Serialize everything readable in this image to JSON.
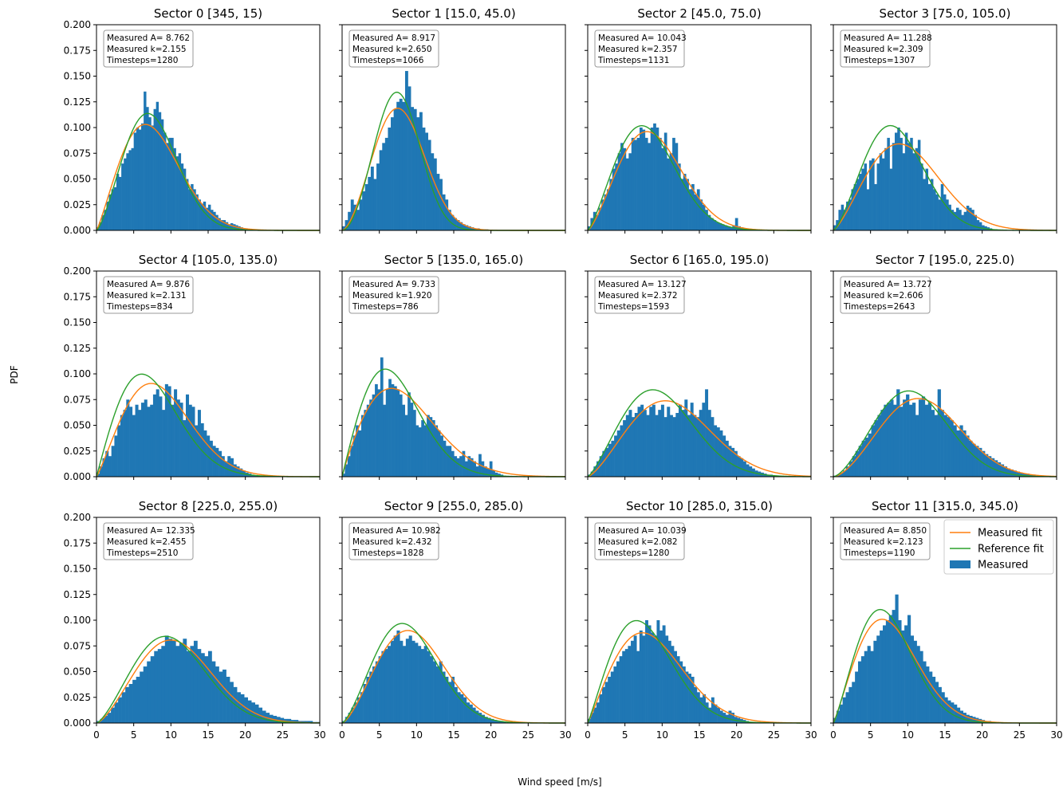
{
  "figure": {
    "xlabel": "Wind speed [m/s]",
    "ylabel": "PDF",
    "legend": {
      "placement": "upper-right of Sector 11",
      "entries": [
        {
          "label": "Measured fit",
          "color": "#ff7f0e",
          "kind": "line"
        },
        {
          "label": "Reference fit",
          "color": "#2ca02c",
          "kind": "line"
        },
        {
          "label": "Measured",
          "color": "#1f77b4",
          "kind": "patch"
        }
      ]
    }
  },
  "chart_data": {
    "type": "bar",
    "layout": "3x4 grid, shared axes",
    "xlim": [
      0,
      30
    ],
    "ylim": [
      0,
      0.2
    ],
    "x_ticks": [
      0,
      5,
      10,
      15,
      20,
      25,
      30
    ],
    "y_ticks": [
      "0.000",
      "0.025",
      "0.050",
      "0.075",
      "0.100",
      "0.125",
      "0.150",
      "0.175",
      "0.200"
    ],
    "grid": false,
    "colors": {
      "measured": "#1f77b4",
      "measured_fit": "#ff7f0e",
      "reference_fit": "#2ca02c"
    },
    "panels": [
      {
        "title": "Sector 0 [345, 15)",
        "A_text": "Measured A= 8.762",
        "k_text": "Measured k=2.155",
        "ts_text": "Timesteps=1280",
        "A": 8.762,
        "k": 2.155,
        "refA": 8.6,
        "refK": 2.4,
        "maxx": 22,
        "hist": [
          0.003,
          0.008,
          0.015,
          0.02,
          0.028,
          0.035,
          0.04,
          0.042,
          0.055,
          0.052,
          0.065,
          0.07,
          0.075,
          0.078,
          0.08,
          0.095,
          0.1,
          0.098,
          0.104,
          0.135,
          0.12,
          0.11,
          0.102,
          0.118,
          0.125,
          0.115,
          0.108,
          0.095,
          0.085,
          0.09,
          0.09,
          0.08,
          0.072,
          0.075,
          0.065,
          0.06,
          0.05,
          0.04,
          0.045,
          0.04,
          0.035,
          0.03,
          0.026,
          0.028,
          0.022,
          0.025,
          0.02,
          0.018,
          0.015,
          0.012,
          0.01,
          0.01,
          0.008,
          0.006,
          0.007,
          0.006,
          0.005,
          0.004,
          0.003,
          0.002,
          0.002,
          0.001,
          0.001,
          0.001,
          0.001,
          0.0
        ]
      },
      {
        "title": "Sector 1 [15.0, 45.0)",
        "A_text": "Measured A= 8.917",
        "k_text": "Measured k=2.650",
        "ts_text": "Timesteps=1066",
        "A": 8.917,
        "k": 2.65,
        "refA": 8.5,
        "refK": 2.9,
        "maxx": 20,
        "hist": [
          0.004,
          0.01,
          0.018,
          0.03,
          0.025,
          0.02,
          0.03,
          0.038,
          0.045,
          0.052,
          0.062,
          0.05,
          0.065,
          0.078,
          0.085,
          0.09,
          0.1,
          0.11,
          0.118,
          0.125,
          0.128,
          0.125,
          0.155,
          0.14,
          0.12,
          0.118,
          0.11,
          0.115,
          0.1,
          0.095,
          0.088,
          0.075,
          0.07,
          0.055,
          0.05,
          0.035,
          0.03,
          0.02,
          0.015,
          0.012,
          0.01,
          0.008,
          0.006,
          0.005,
          0.004,
          0.003,
          0.002,
          0.002,
          0.001,
          0.001,
          0.001,
          0.0
        ]
      },
      {
        "title": "Sector 2 [45.0, 75.0)",
        "A_text": "Measured A= 10.043",
        "k_text": "Measured k=2.357",
        "ts_text": "Timesteps=1131",
        "A": 10.043,
        "k": 2.357,
        "refA": 9.3,
        "refK": 2.3,
        "maxx": 22,
        "hist": [
          0.004,
          0.012,
          0.018,
          0.015,
          0.022,
          0.03,
          0.035,
          0.04,
          0.05,
          0.06,
          0.065,
          0.075,
          0.085,
          0.08,
          0.07,
          0.075,
          0.09,
          0.088,
          0.09,
          0.1,
          0.098,
          0.09,
          0.085,
          0.1,
          0.104,
          0.1,
          0.09,
          0.08,
          0.095,
          0.07,
          0.075,
          0.09,
          0.085,
          0.065,
          0.05,
          0.055,
          0.05,
          0.04,
          0.045,
          0.035,
          0.04,
          0.03,
          0.025,
          0.02,
          0.015,
          0.012,
          0.01,
          0.008,
          0.007,
          0.006,
          0.005,
          0.004,
          0.003,
          0.005,
          0.012,
          0.004,
          0.003,
          0.002,
          0.001,
          0.001
        ]
      },
      {
        "title": "Sector 3 [75.0, 105.0)",
        "A_text": "Measured A= 11.288",
        "k_text": "Measured k=2.309",
        "ts_text": "Timesteps=1307",
        "A": 11.288,
        "k": 2.309,
        "refA": 9.6,
        "refK": 2.4,
        "maxx": 22,
        "hist": [
          0.005,
          0.01,
          0.02,
          0.025,
          0.02,
          0.028,
          0.03,
          0.04,
          0.045,
          0.05,
          0.055,
          0.06,
          0.065,
          0.04,
          0.068,
          0.07,
          0.045,
          0.065,
          0.075,
          0.07,
          0.08,
          0.09,
          0.06,
          0.085,
          0.095,
          0.1,
          0.09,
          0.075,
          0.095,
          0.085,
          0.09,
          0.075,
          0.08,
          0.088,
          0.065,
          0.05,
          0.06,
          0.045,
          0.05,
          0.04,
          0.035,
          0.03,
          0.045,
          0.035,
          0.03,
          0.025,
          0.02,
          0.018,
          0.022,
          0.02,
          0.015,
          0.018,
          0.024,
          0.022,
          0.02,
          0.015,
          0.01,
          0.008,
          0.005,
          0.004,
          0.003,
          0.002,
          0.001,
          0.001
        ]
      },
      {
        "title": "Sector 4 [105.0, 135.0)",
        "A_text": "Measured A= 9.876",
        "k_text": "Measured k=2.131",
        "ts_text": "Timesteps=834",
        "A": 9.876,
        "k": 2.131,
        "refA": 8.6,
        "refK": 2.0,
        "maxx": 22,
        "hist": [
          0.003,
          0.01,
          0.018,
          0.025,
          0.02,
          0.03,
          0.04,
          0.05,
          0.06,
          0.065,
          0.075,
          0.068,
          0.06,
          0.07,
          0.065,
          0.072,
          0.075,
          0.068,
          0.07,
          0.08,
          0.085,
          0.078,
          0.065,
          0.09,
          0.088,
          0.07,
          0.085,
          0.075,
          0.072,
          0.055,
          0.08,
          0.07,
          0.068,
          0.05,
          0.065,
          0.052,
          0.045,
          0.04,
          0.035,
          0.03,
          0.028,
          0.025,
          0.02,
          0.015,
          0.02,
          0.018,
          0.012,
          0.01,
          0.008,
          0.006,
          0.004,
          0.003,
          0.002,
          0.001,
          0.001
        ]
      },
      {
        "title": "Sector 5 [135.0, 165.0)",
        "A_text": "Measured A= 9.733",
        "k_text": "Measured k=1.920",
        "ts_text": "Timesteps=786",
        "A": 9.733,
        "k": 1.92,
        "refA": 8.2,
        "refK": 2.0,
        "maxx": 22,
        "hist": [
          0.003,
          0.012,
          0.02,
          0.03,
          0.04,
          0.05,
          0.045,
          0.06,
          0.065,
          0.07,
          0.075,
          0.08,
          0.09,
          0.085,
          0.116,
          0.07,
          0.085,
          0.095,
          0.09,
          0.088,
          0.085,
          0.08,
          0.07,
          0.06,
          0.082,
          0.072,
          0.065,
          0.05,
          0.048,
          0.055,
          0.05,
          0.06,
          0.058,
          0.055,
          0.05,
          0.045,
          0.04,
          0.035,
          0.03,
          0.03,
          0.025,
          0.02,
          0.018,
          0.02,
          0.025,
          0.015,
          0.02,
          0.018,
          0.015,
          0.01,
          0.022,
          0.015,
          0.01,
          0.008,
          0.015,
          0.006,
          0.004,
          0.003,
          0.002,
          0.001
        ]
      },
      {
        "title": "Sector 6 [165.0, 195.0)",
        "A_text": "Measured A= 13.127",
        "k_text": "Measured k=2.372",
        "ts_text": "Timesteps=1593",
        "A": 13.127,
        "k": 2.372,
        "refA": 11.2,
        "refK": 2.3,
        "maxx": 26,
        "hist": [
          0.002,
          0.005,
          0.01,
          0.015,
          0.02,
          0.025,
          0.028,
          0.032,
          0.035,
          0.04,
          0.045,
          0.05,
          0.055,
          0.06,
          0.065,
          0.058,
          0.062,
          0.068,
          0.07,
          0.065,
          0.06,
          0.068,
          0.07,
          0.06,
          0.065,
          0.07,
          0.058,
          0.068,
          0.06,
          0.058,
          0.062,
          0.07,
          0.065,
          0.075,
          0.06,
          0.072,
          0.06,
          0.058,
          0.065,
          0.072,
          0.085,
          0.065,
          0.058,
          0.05,
          0.048,
          0.045,
          0.04,
          0.035,
          0.03,
          0.028,
          0.025,
          0.02,
          0.018,
          0.015,
          0.012,
          0.01,
          0.008,
          0.006,
          0.005,
          0.004,
          0.003,
          0.002,
          0.002,
          0.001,
          0.001,
          0.001
        ]
      },
      {
        "title": "Sector 7 [195.0, 225.0)",
        "A_text": "Measured A= 13.727",
        "k_text": "Measured k=2.606",
        "ts_text": "Timesteps=2643",
        "A": 13.727,
        "k": 2.606,
        "refA": 12.3,
        "refK": 2.55,
        "maxx": 28,
        "hist": [
          0.001,
          0.002,
          0.004,
          0.006,
          0.01,
          0.015,
          0.02,
          0.025,
          0.03,
          0.035,
          0.038,
          0.042,
          0.05,
          0.055,
          0.06,
          0.065,
          0.07,
          0.072,
          0.075,
          0.07,
          0.085,
          0.068,
          0.075,
          0.08,
          0.07,
          0.072,
          0.06,
          0.075,
          0.078,
          0.07,
          0.072,
          0.065,
          0.06,
          0.085,
          0.065,
          0.06,
          0.058,
          0.055,
          0.05,
          0.045,
          0.05,
          0.045,
          0.04,
          0.035,
          0.032,
          0.03,
          0.028,
          0.025,
          0.022,
          0.02,
          0.018,
          0.016,
          0.014,
          0.012,
          0.01,
          0.008,
          0.007,
          0.006,
          0.005,
          0.004,
          0.003,
          0.003,
          0.002,
          0.002,
          0.001,
          0.001
        ]
      },
      {
        "title": "Sector 8 [225.0, 255.0)",
        "A_text": "Measured A= 12.335",
        "k_text": "Measured k=2.455",
        "ts_text": "Timesteps=2510",
        "A": 12.335,
        "k": 2.455,
        "refA": 11.6,
        "refK": 2.4,
        "maxx": 30,
        "hist": [
          0.002,
          0.004,
          0.007,
          0.01,
          0.015,
          0.02,
          0.025,
          0.03,
          0.035,
          0.038,
          0.042,
          0.045,
          0.05,
          0.055,
          0.06,
          0.065,
          0.07,
          0.072,
          0.075,
          0.085,
          0.082,
          0.08,
          0.075,
          0.078,
          0.082,
          0.07,
          0.075,
          0.08,
          0.072,
          0.068,
          0.065,
          0.07,
          0.06,
          0.055,
          0.05,
          0.052,
          0.045,
          0.04,
          0.035,
          0.03,
          0.028,
          0.025,
          0.022,
          0.02,
          0.018,
          0.015,
          0.012,
          0.01,
          0.008,
          0.007,
          0.006,
          0.005,
          0.004,
          0.004,
          0.003,
          0.003,
          0.002,
          0.002,
          0.002,
          0.002,
          0.001,
          0.001
        ]
      },
      {
        "title": "Sector 9 [255.0, 285.0)",
        "A_text": "Measured A= 10.982",
        "k_text": "Measured k=2.432",
        "ts_text": "Timesteps=1828",
        "A": 10.982,
        "k": 2.432,
        "refA": 10.1,
        "refK": 2.4,
        "maxx": 22,
        "hist": [
          0.002,
          0.006,
          0.01,
          0.015,
          0.02,
          0.025,
          0.03,
          0.038,
          0.045,
          0.05,
          0.055,
          0.06,
          0.065,
          0.07,
          0.072,
          0.075,
          0.08,
          0.085,
          0.09,
          0.08,
          0.075,
          0.082,
          0.085,
          0.08,
          0.078,
          0.075,
          0.072,
          0.075,
          0.07,
          0.065,
          0.06,
          0.055,
          0.06,
          0.05,
          0.045,
          0.04,
          0.045,
          0.035,
          0.03,
          0.028,
          0.025,
          0.02,
          0.018,
          0.015,
          0.012,
          0.01,
          0.008,
          0.006,
          0.005,
          0.004,
          0.003,
          0.002,
          0.002,
          0.001
        ]
      },
      {
        "title": "Sector 10 [285.0, 315.0)",
        "A_text": "Measured A= 10.039",
        "k_text": "Measured k=2.082",
        "ts_text": "Timesteps=1280",
        "A": 10.039,
        "k": 2.082,
        "refA": 8.9,
        "refK": 2.1,
        "maxx": 22,
        "hist": [
          0.004,
          0.01,
          0.015,
          0.02,
          0.028,
          0.035,
          0.04,
          0.045,
          0.05,
          0.055,
          0.06,
          0.065,
          0.07,
          0.072,
          0.075,
          0.08,
          0.085,
          0.07,
          0.09,
          0.085,
          0.1,
          0.095,
          0.088,
          0.085,
          0.1,
          0.09,
          0.095,
          0.085,
          0.08,
          0.075,
          0.07,
          0.065,
          0.06,
          0.055,
          0.05,
          0.048,
          0.045,
          0.035,
          0.03,
          0.025,
          0.028,
          0.02,
          0.015,
          0.025,
          0.018,
          0.015,
          0.012,
          0.01,
          0.008,
          0.012,
          0.01,
          0.006,
          0.005,
          0.004,
          0.003,
          0.002,
          0.001
        ]
      },
      {
        "title": "Sector 11 [315.0, 345.0)",
        "A_text": "Measured A= 8.850",
        "k_text": "Measured k=2.123",
        "ts_text": "Timesteps=1190",
        "A": 8.85,
        "k": 2.123,
        "refA": 8.3,
        "refK": 2.2,
        "maxx": 22,
        "hist": [
          0.005,
          0.012,
          0.018,
          0.025,
          0.03,
          0.035,
          0.04,
          0.05,
          0.06,
          0.065,
          0.07,
          0.075,
          0.07,
          0.08,
          0.085,
          0.09,
          0.095,
          0.1,
          0.105,
          0.11,
          0.125,
          0.1,
          0.09,
          0.095,
          0.105,
          0.085,
          0.08,
          0.075,
          0.07,
          0.06,
          0.055,
          0.05,
          0.045,
          0.04,
          0.035,
          0.03,
          0.025,
          0.022,
          0.02,
          0.018,
          0.015,
          0.012,
          0.01,
          0.008,
          0.007,
          0.006,
          0.005,
          0.004,
          0.003,
          0.002,
          0.002,
          0.001,
          0.001
        ]
      }
    ]
  }
}
